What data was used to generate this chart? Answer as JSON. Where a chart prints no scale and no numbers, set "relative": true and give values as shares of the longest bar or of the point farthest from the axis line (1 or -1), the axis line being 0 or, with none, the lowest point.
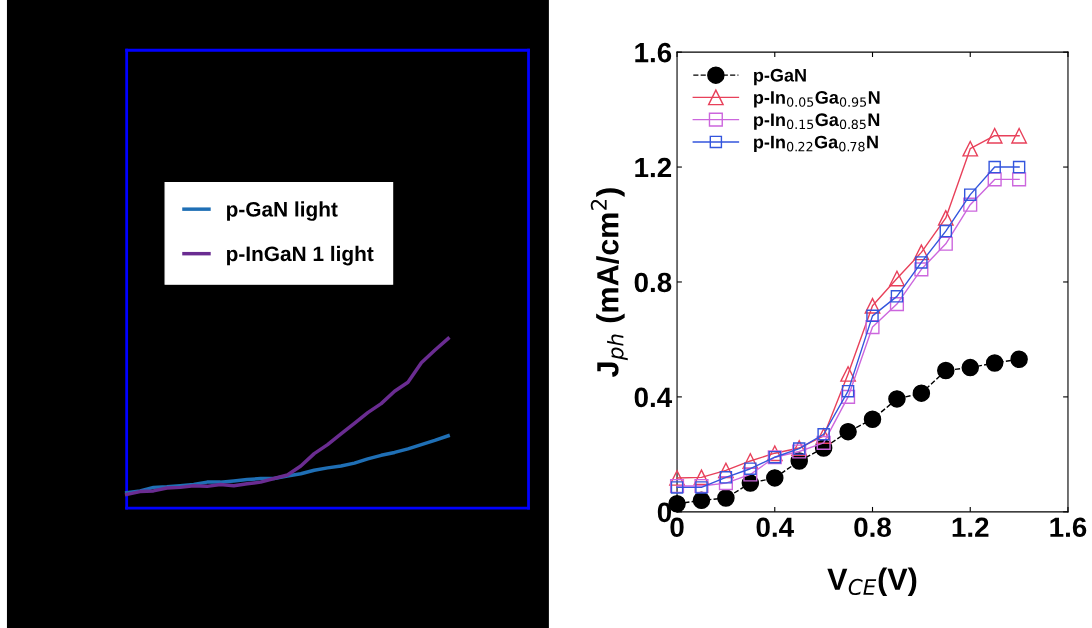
{
  "chart_data": [
    {
      "type": "line",
      "relative": true,
      "legend": "left",
      "line_style": "solid",
      "marker": "none",
      "categories": [
        null,
        null,
        null,
        null,
        null,
        null,
        null,
        null,
        null,
        null,
        null,
        null,
        null,
        null,
        null,
        null,
        null,
        null,
        null,
        null,
        null,
        null,
        null,
        null,
        null,
        null,
        null,
        null,
        null,
        null,
        null
      ],
      "series": [
        {
          "name": "p-GaN light",
          "color": "#1f6fb5",
          "values": [
            0.09,
            0.101,
            0.122,
            0.126,
            0.132,
            0.139,
            0.153,
            0.153,
            0.16,
            0.168,
            0.174,
            0.174,
            0.189,
            0.202,
            0.223,
            0.237,
            0.248,
            0.265,
            0.29,
            0.311,
            0.328,
            0.349,
            0.374,
            0.399,
            0.426,
            null,
            null,
            null,
            null,
            null,
            null
          ]
        },
        {
          "name": "p-InGaN 1 light",
          "color": "#6a2c91",
          "values": [
            0.08,
            0.097,
            0.101,
            0.118,
            0.122,
            0.132,
            0.128,
            0.139,
            0.132,
            0.143,
            0.153,
            0.174,
            0.195,
            0.248,
            0.321,
            0.374,
            0.437,
            0.5,
            0.563,
            0.616,
            0.689,
            0.742,
            0.857,
            0.931,
            1.0,
            null,
            null,
            null,
            null,
            null,
            null
          ]
        }
      ]
    },
    {
      "type": "line",
      "xlabel": "V$_{CE}$(V)",
      "ylabel": "J$_{ph}$ (mA/cm$^{2}$)",
      "legend": "top left",
      "grid": false,
      "xlim": [
        0,
        1.6
      ],
      "xticks": [
        0,
        0.4,
        0.8,
        1.2,
        1.6
      ],
      "ylim": [
        0,
        1.6
      ],
      "yticks": [
        0,
        0.4,
        0.8,
        1.2,
        1.6
      ],
      "x": [
        0,
        0.1,
        0.2,
        0.3,
        0.4,
        0.5,
        0.6,
        0.7,
        0.8,
        0.9,
        1.0,
        1.1,
        1.2,
        1.3,
        1.4
      ],
      "series": [
        {
          "name": "p-GaN",
          "color": "#000000",
          "marker": "circle",
          "line_style": "dashed",
          "values": [
            0.028,
            0.04,
            0.048,
            0.1,
            0.118,
            0.177,
            0.222,
            0.279,
            0.322,
            0.393,
            0.413,
            0.492,
            0.502,
            0.518,
            0.531
          ]
        },
        {
          "name": "p-In$_{0.05}$Ga$_{0.95}$N",
          "color": "#e8405a",
          "marker": "triangle",
          "line_style": "solid",
          "values": [
            0.118,
            0.12,
            0.144,
            0.177,
            0.204,
            0.222,
            0.264,
            0.48,
            0.717,
            0.812,
            0.903,
            1.023,
            1.264,
            1.309,
            1.309
          ]
        },
        {
          "name": "p-In$_{0.15}$Ga$_{0.85}$N",
          "color": "#cc66dd",
          "marker": "square",
          "line_style": "solid",
          "values": [
            0.09,
            0.09,
            0.1,
            0.13,
            0.19,
            0.21,
            0.24,
            0.4,
            0.643,
            0.723,
            0.844,
            0.933,
            1.069,
            1.157,
            1.157
          ]
        },
        {
          "name": "p-In$_{0.22}$Ga$_{0.78}$N",
          "color": "#3355dd",
          "marker": "square",
          "line_style": "solid",
          "values": [
            0.085,
            0.085,
            0.12,
            0.15,
            0.19,
            0.22,
            0.27,
            0.42,
            0.682,
            0.75,
            0.868,
            0.977,
            1.104,
            1.2,
            1.2
          ]
        }
      ]
    }
  ]
}
